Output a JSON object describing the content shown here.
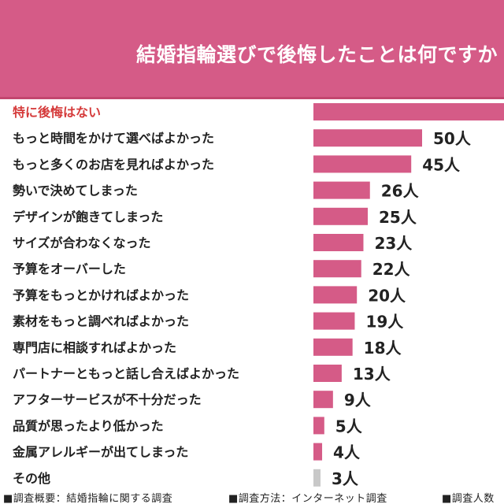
{
  "chart_data": {
    "type": "bar",
    "title": "結婚指輪選びで後悔したことは何ですか",
    "categories": [
      "特に後悔はない",
      "もっと時間をかけて選べばよかった",
      "もっと多くのお店を見ればよかった",
      "勢いで決めてしまった",
      "デザインが飽きてしまった",
      "サイズが合わなくなった",
      "予算をオーバーした",
      "予算をもっとかければよかった",
      "素材をもっと調べればよかった",
      "専門店に相談すればよかった",
      "パートナーともっと話し合えばよかった",
      "アフターサービスが不十分だった",
      "品質が思ったより低かった",
      "金属アレルギーが出てしまった",
      "その他"
    ],
    "values": [
      null,
      50,
      45,
      26,
      25,
      23,
      22,
      20,
      19,
      18,
      13,
      9,
      5,
      4,
      3
    ],
    "value_labels": [
      "",
      "50人",
      "45人",
      "26人",
      "25人",
      "23人",
      "22人",
      "20人",
      "19人",
      "18人",
      "13人",
      "9人",
      "5人",
      "4人",
      "3人"
    ],
    "highlight_category": "特に後悔はない",
    "colors": {
      "header": "#d55b87",
      "bar": "#d55b87",
      "highlight_text": "#d53a3a",
      "other_bar": "#c8c8c8",
      "label_text": "#222222"
    }
  },
  "footer": {
    "method_summary": "■調査概要：結婚指輪に関する調査",
    "method": "■調査方法：インターネット調査",
    "respondents": "■調査人数"
  }
}
